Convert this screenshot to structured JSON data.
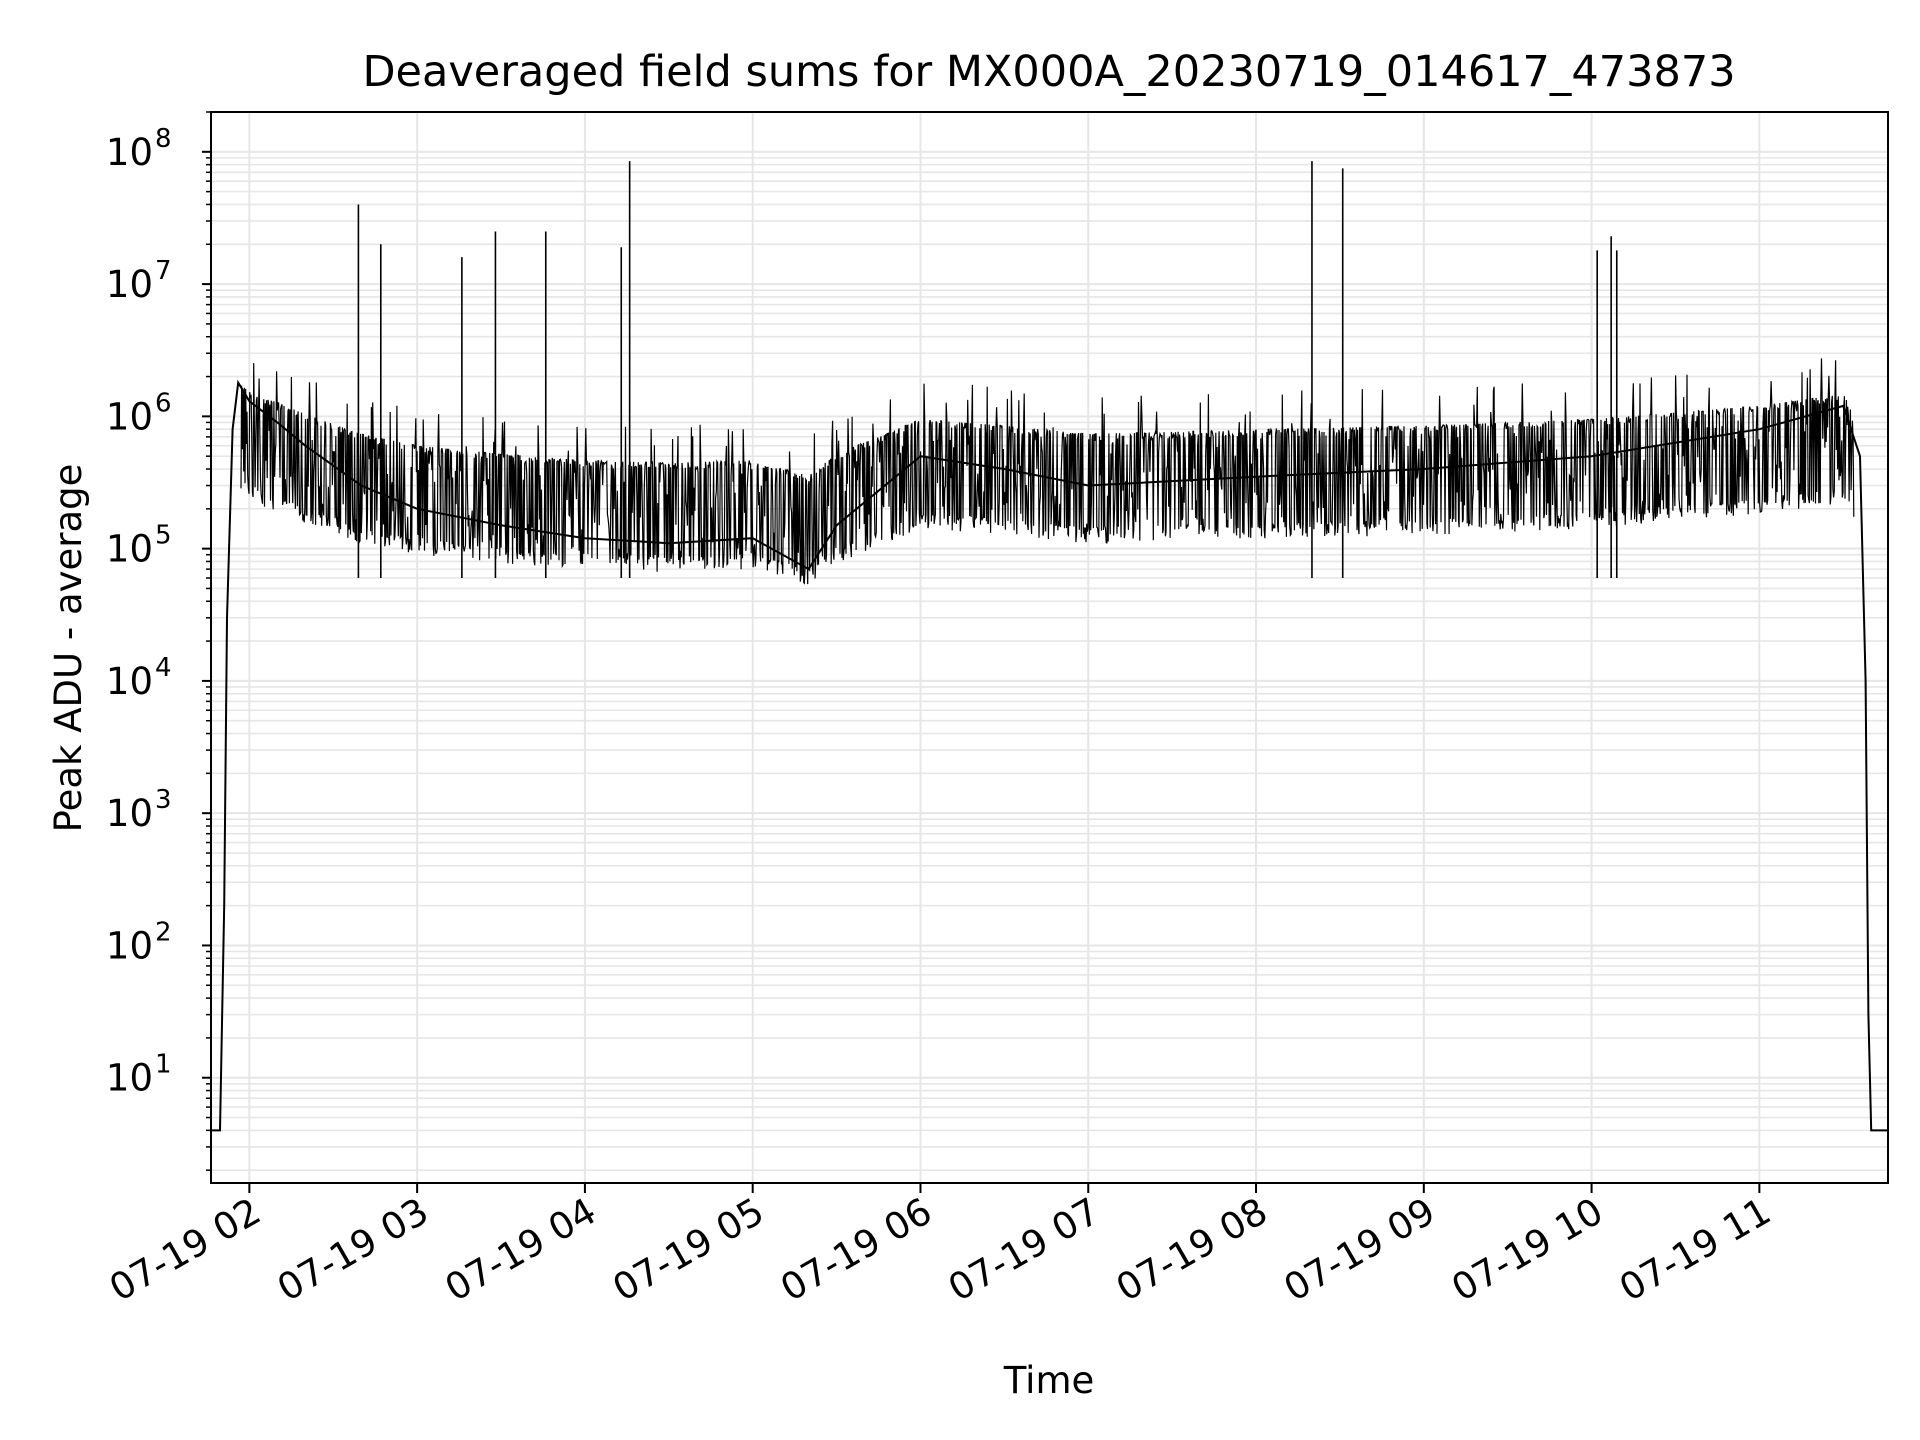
{
  "chart_data": {
    "type": "line",
    "title": "Deaveraged field sums for MX000A_20230719_014617_473873",
    "xlabel": "Time",
    "ylabel": "Peak ADU - average",
    "yscale": "log",
    "ylim": [
      1.6,
      200000000.0
    ],
    "xlim": [
      "2023-07-19 01:46:17",
      "2023-07-19 11:46:00"
    ],
    "x_ticks": [
      {
        "time": "2023-07-19 02:00",
        "label": "07-19 02"
      },
      {
        "time": "2023-07-19 03:00",
        "label": "07-19 03"
      },
      {
        "time": "2023-07-19 04:00",
        "label": "07-19 04"
      },
      {
        "time": "2023-07-19 05:00",
        "label": "07-19 05"
      },
      {
        "time": "2023-07-19 06:00",
        "label": "07-19 06"
      },
      {
        "time": "2023-07-19 07:00",
        "label": "07-19 07"
      },
      {
        "time": "2023-07-19 08:00",
        "label": "07-19 08"
      },
      {
        "time": "2023-07-19 09:00",
        "label": "07-19 09"
      },
      {
        "time": "2023-07-19 10:00",
        "label": "07-19 10"
      },
      {
        "time": "2023-07-19 11:00",
        "label": "07-19 11"
      }
    ],
    "y_ticks": [
      {
        "value": 10,
        "base": "10",
        "exp": "1"
      },
      {
        "value": 100,
        "base": "10",
        "exp": "2"
      },
      {
        "value": 1000,
        "base": "10",
        "exp": "3"
      },
      {
        "value": 10000,
        "base": "10",
        "exp": "4"
      },
      {
        "value": 100000,
        "base": "10",
        "exp": "5"
      },
      {
        "value": 1000000,
        "base": "10",
        "exp": "6"
      },
      {
        "value": 10000000,
        "base": "10",
        "exp": "7"
      },
      {
        "value": 100000000,
        "base": "10",
        "exp": "8"
      }
    ],
    "grid": "on (major and minor)",
    "line_color": "#000000",
    "grid_color": "#e6e6e6",
    "series": [
      {
        "points": [
          [
            "2023-07-19 01:46:17",
            4
          ],
          [
            "2023-07-19 01:48:30",
            4
          ],
          [
            "2023-07-19 01:49:30",
            4
          ],
          [
            "2023-07-19 01:51:00",
            200
          ],
          [
            "2023-07-19 01:52:00",
            30000
          ],
          [
            "2023-07-19 01:54:00",
            800000
          ],
          [
            "2023-07-19 01:56:00",
            1800000
          ],
          [
            "2023-07-19 02:00:00",
            1300000
          ],
          [
            "2023-07-19 02:10:00",
            900000
          ],
          [
            "2023-07-19 02:20:00",
            600000
          ],
          [
            "2023-07-19 02:40:00",
            300000
          ],
          [
            "2023-07-19 03:00:00",
            200000
          ],
          [
            "2023-07-19 03:30:00",
            150000
          ],
          [
            "2023-07-19 04:00:00",
            120000
          ],
          [
            "2023-07-19 04:30:00",
            110000
          ],
          [
            "2023-07-19 05:00:00",
            120000
          ],
          [
            "2023-07-19 05:20:00",
            70000
          ],
          [
            "2023-07-19 05:30:00",
            150000
          ],
          [
            "2023-07-19 06:00:00",
            500000
          ],
          [
            "2023-07-19 06:30:00",
            400000
          ],
          [
            "2023-07-19 07:00:00",
            300000
          ],
          [
            "2023-07-19 08:00:00",
            350000
          ],
          [
            "2023-07-19 09:00:00",
            400000
          ],
          [
            "2023-07-19 10:00:00",
            500000
          ],
          [
            "2023-07-19 11:00:00",
            800000
          ],
          [
            "2023-07-19 11:30:00",
            1200000
          ],
          [
            "2023-07-19 11:36:00",
            500000
          ],
          [
            "2023-07-19 11:38:00",
            10000
          ],
          [
            "2023-07-19 11:39:00",
            30
          ],
          [
            "2023-07-19 11:40:00",
            4
          ],
          [
            "2023-07-19 11:46:00",
            4
          ]
        ]
      }
    ],
    "spikes": [
      [
        "2023-07-19 02:39:00",
        40000000.0
      ],
      [
        "2023-07-19 02:47:00",
        20000000.0
      ],
      [
        "2023-07-19 03:16:00",
        16000000.0
      ],
      [
        "2023-07-19 03:28:00",
        25000000.0
      ],
      [
        "2023-07-19 03:46:00",
        25000000.0
      ],
      [
        "2023-07-19 04:16:00",
        85000000.0
      ],
      [
        "2023-07-19 04:13:00",
        19000000.0
      ],
      [
        "2023-07-19 08:20:00",
        85000000.0
      ],
      [
        "2023-07-19 08:31:00",
        75000000.0
      ],
      [
        "2023-07-19 10:02:00",
        18000000.0
      ],
      [
        "2023-07-19 10:07:00",
        23000000.0
      ],
      [
        "2023-07-19 10:09:00",
        18000000.0
      ]
    ]
  }
}
